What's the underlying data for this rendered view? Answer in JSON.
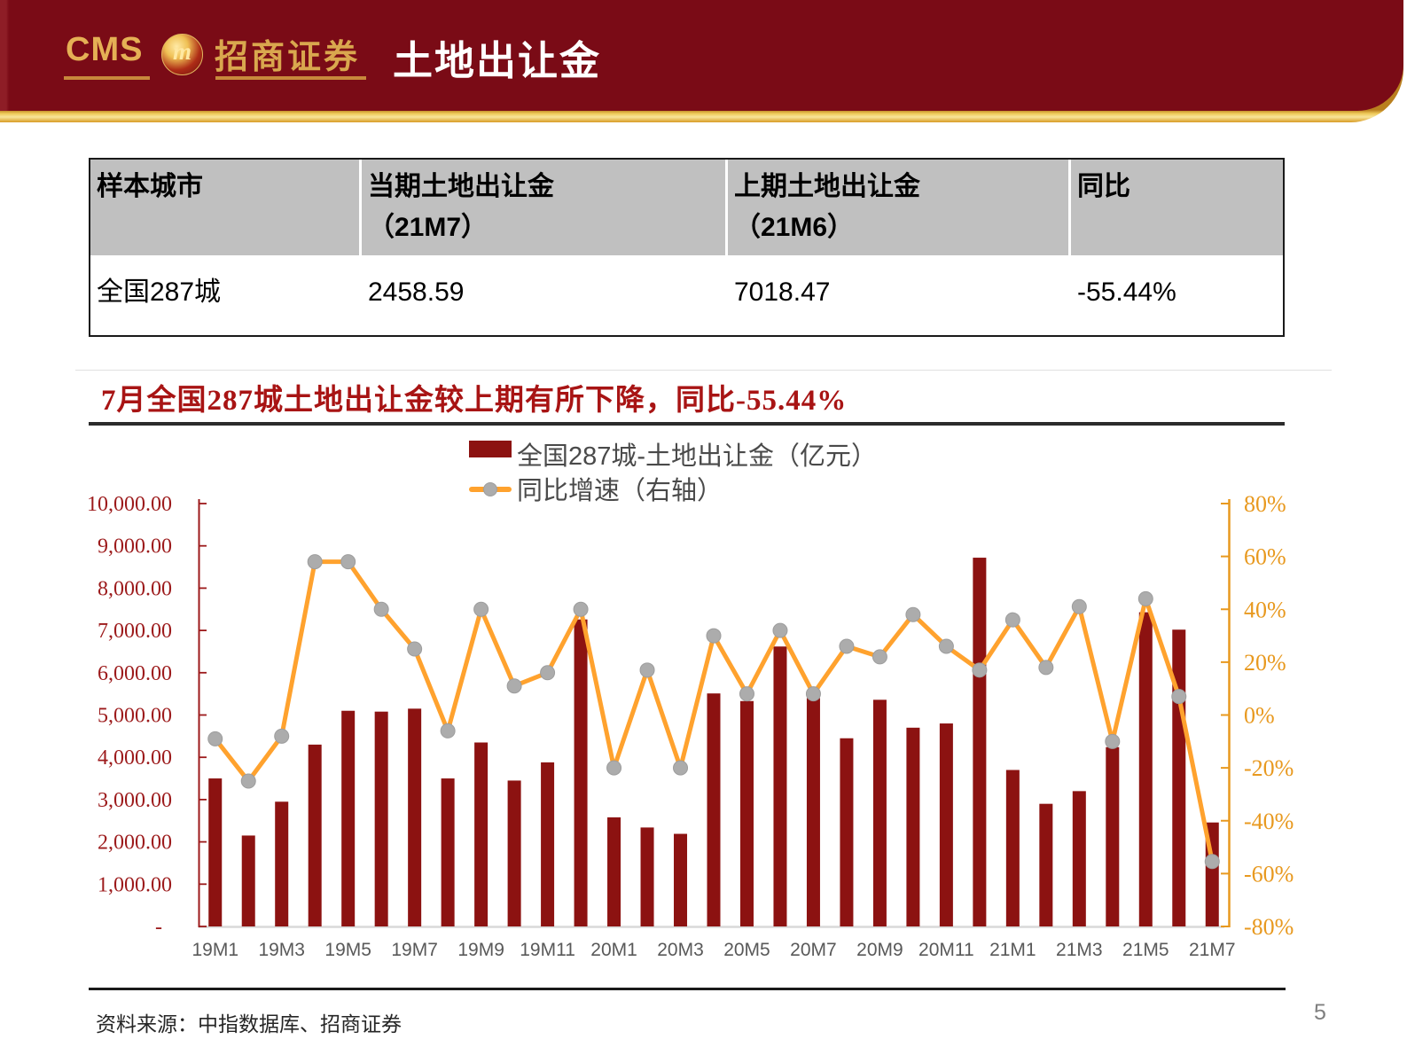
{
  "header": {
    "logo_cms": "CMS",
    "logo_emblem": "m",
    "company_name": "招商证券",
    "title": "土地出让金",
    "band_color": "#7a0b16",
    "gold_color": "#e9b54a"
  },
  "table": {
    "col_headers": [
      {
        "l1": "样本城市",
        "l2": ""
      },
      {
        "l1": "当期土地出让金",
        "l2": "（21M7）"
      },
      {
        "l1": "上期土地出让金",
        "l2": "（21M6）"
      },
      {
        "l1": "同比",
        "l2": ""
      }
    ],
    "rows": [
      [
        "全国287城",
        "2458.59",
        "7018.47",
        "-55.44%"
      ]
    ]
  },
  "note": "7月全国287城土地出让金较上期有所下降，同比-55.44%",
  "chart_data": {
    "type": "bar+line",
    "categories": [
      "19M1",
      "19M2",
      "19M3",
      "19M4",
      "19M5",
      "19M6",
      "19M7",
      "19M8",
      "19M9",
      "19M10",
      "19M11",
      "19M12",
      "20M1",
      "20M2",
      "20M3",
      "20M4",
      "20M5",
      "20M6",
      "20M7",
      "20M8",
      "20M9",
      "20M10",
      "20M11",
      "20M12",
      "21M1",
      "21M2",
      "21M3",
      "21M4",
      "21M5",
      "21M6",
      "21M7"
    ],
    "series": [
      {
        "name": "全国287城-土地出让金（亿元）",
        "type": "bar",
        "axis": "left",
        "color": "#8c1211",
        "values": [
          3500,
          2150,
          2950,
          4300,
          5100,
          5080,
          5150,
          3500,
          4350,
          3450,
          3880,
          7260,
          2580,
          2340,
          2190,
          5510,
          5330,
          6620,
          5400,
          4450,
          5360,
          4700,
          4800,
          8720,
          3700,
          2900,
          3200,
          4240,
          7430,
          7018.47,
          2458.59
        ]
      },
      {
        "name": "同比增速（右轴）",
        "type": "line",
        "axis": "right",
        "color": "#ffa22e",
        "marker_color": "#acacac",
        "values": [
          -9,
          -25,
          -8,
          58,
          58,
          40,
          25,
          -6,
          40,
          11,
          16,
          40,
          -20,
          17,
          -20,
          30,
          8,
          32,
          8,
          26,
          22,
          38,
          26,
          17,
          36,
          18,
          41,
          -10,
          44,
          7,
          -55.44
        ]
      }
    ],
    "left_axis": {
      "min": 0,
      "max": 10000,
      "step": 1000,
      "color": "#9c1a1b",
      "labels": [
        "10,000.00",
        "9,000.00",
        "8,000.00",
        "7,000.00",
        "6,000.00",
        "5,000.00",
        "4,000.00",
        "3,000.00",
        "2,000.00",
        "1,000.00",
        "-"
      ]
    },
    "right_axis": {
      "min": -80,
      "max": 80,
      "step": 20,
      "color": "#e8991f",
      "labels": [
        "80%",
        "60%",
        "40%",
        "20%",
        "0%",
        "-20%",
        "-40%",
        "-60%",
        "-80%"
      ]
    },
    "x_tick_labels": [
      "19M1",
      "19M3",
      "19M5",
      "19M7",
      "19M9",
      "19M11",
      "20M1",
      "20M3",
      "20M5",
      "20M7",
      "20M9",
      "20M11",
      "21M1",
      "21M3",
      "21M5",
      "21M7"
    ],
    "x_label_color": "#595959",
    "grid": false,
    "legend_position": "top-center"
  },
  "footer": {
    "source": "资料来源：中指数据库、招商证券",
    "page": "5"
  }
}
